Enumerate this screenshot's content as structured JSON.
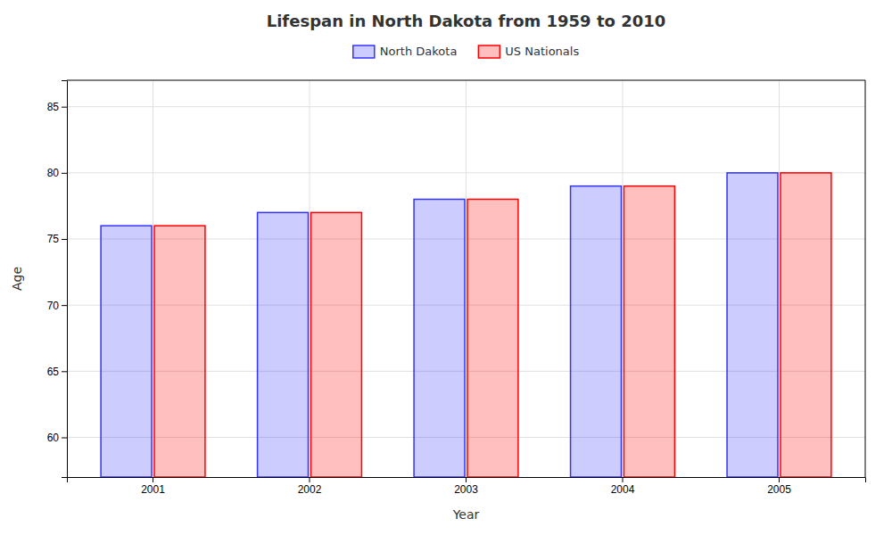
{
  "chart_data": {
    "type": "bar",
    "title": "Lifespan in North Dakota from 1959 to 2010",
    "xlabel": "Year",
    "ylabel": "Age",
    "categories": [
      "2001",
      "2002",
      "2003",
      "2004",
      "2005"
    ],
    "series": [
      {
        "name": "North Dakota",
        "color": "#3333ff",
        "values": [
          76,
          77,
          78,
          79,
          80
        ]
      },
      {
        "name": "US Nationals",
        "color": "#ff0000",
        "values": [
          76,
          77,
          78,
          79,
          80
        ]
      }
    ],
    "ylim": [
      57,
      87
    ],
    "yticks": [
      60,
      65,
      70,
      75,
      80,
      85
    ],
    "grid": true,
    "legend": "top"
  }
}
